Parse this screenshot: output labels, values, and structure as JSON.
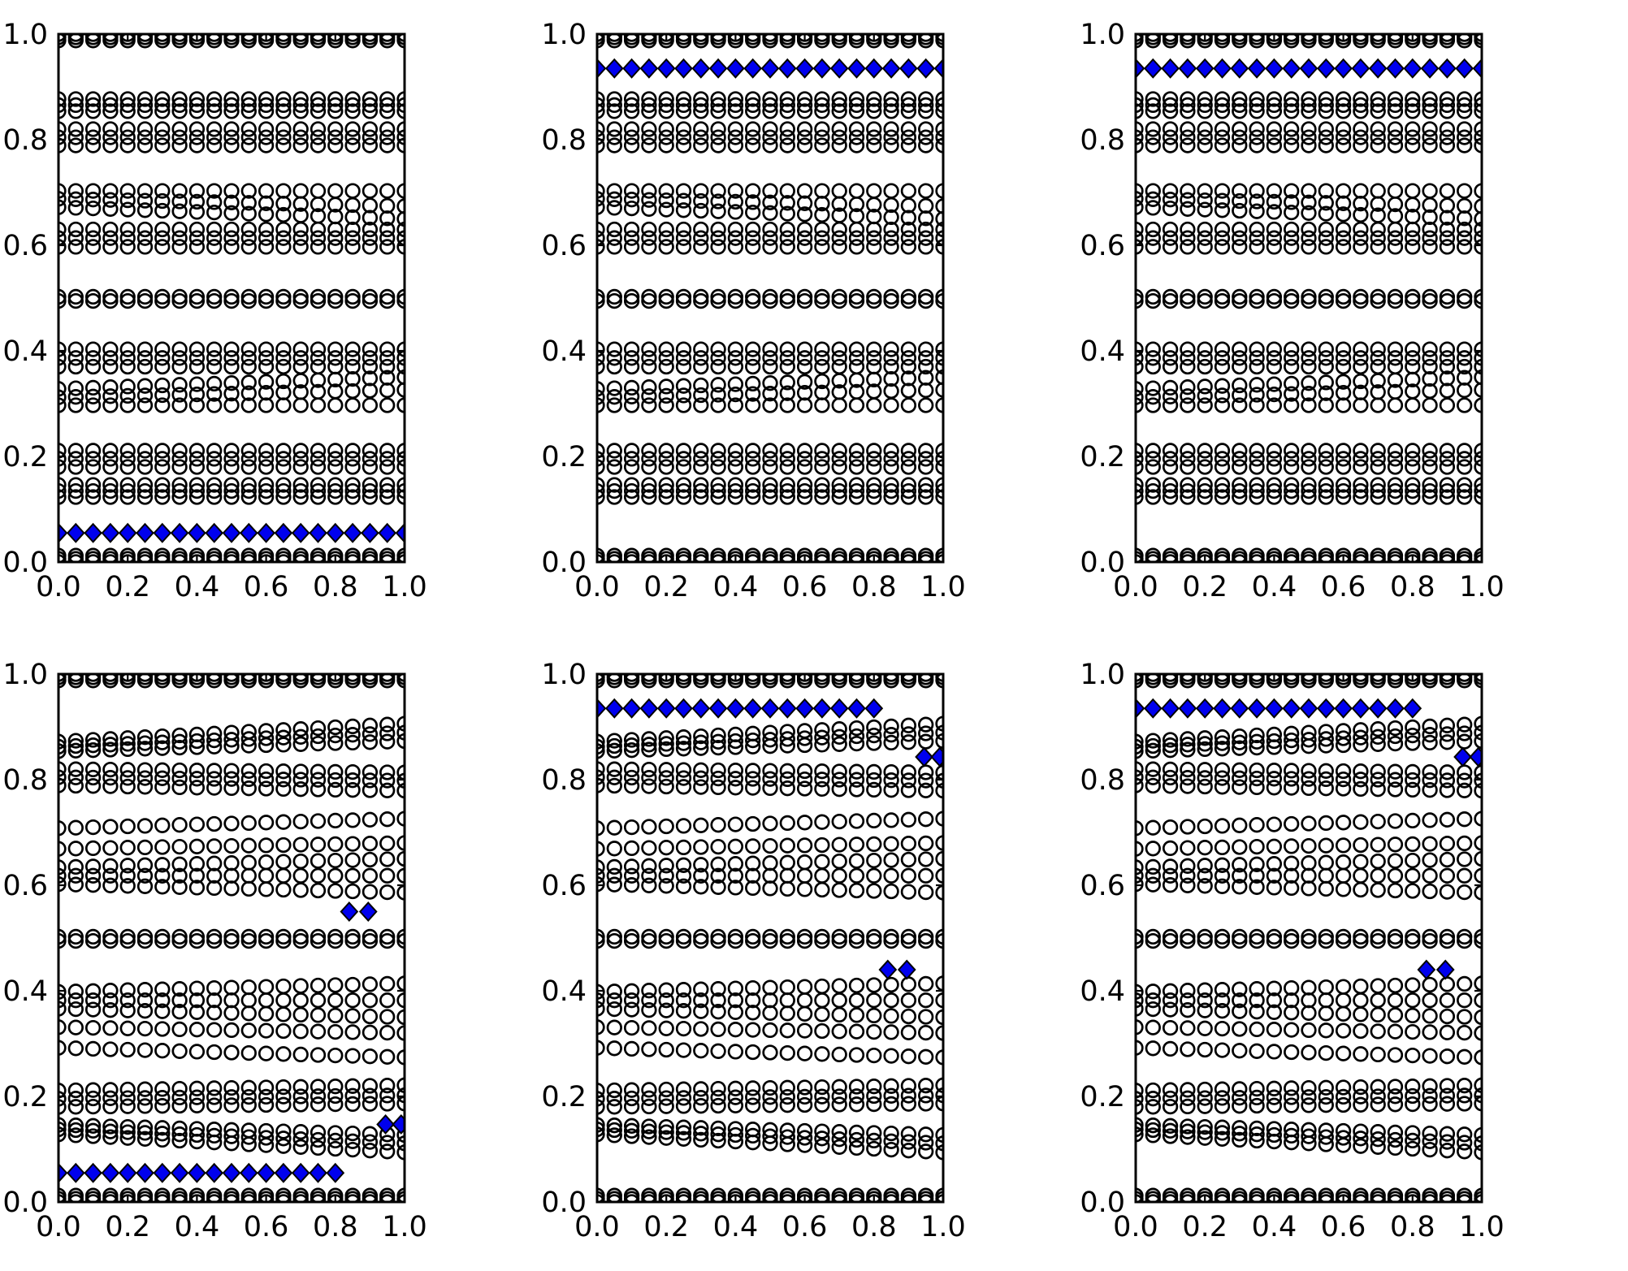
{
  "figure": {
    "background": "#ffffff",
    "description": "2x3 grid of spectrum scatter plots: black open-circle eigenvalue bands vs parameter, blue diamond edge-state branches"
  },
  "chart_data": {
    "type": "scatter",
    "layout": {
      "rows": 2,
      "cols": 3
    },
    "grid": false,
    "legend": null,
    "axes": {
      "xlim": [
        0,
        1
      ],
      "ylim": [
        0,
        1
      ],
      "tick_values": [
        0.0,
        0.2,
        0.4,
        0.6,
        0.8,
        1.0
      ],
      "xtick_labels": [
        "0.0",
        "0.2",
        "0.4",
        "0.6",
        "0.8",
        "1.0"
      ],
      "ytick_labels": [
        "0.0",
        "0.2",
        "0.4",
        "0.6",
        "0.8",
        "1.0"
      ],
      "xlabel": "",
      "ylabel": "",
      "title": ""
    },
    "x_grid": {
      "start": 0,
      "step": 0.05,
      "end": 1
    },
    "style": {
      "circle_edge": "#000000",
      "circle_radius_px": 8.3,
      "circle_stroke_px": 2.7,
      "diamond_fill": "#0000ee",
      "diamond_edge": "#000000",
      "frame": "#000000"
    },
    "subplots": [
      {
        "name": "top-left",
        "circle_rows": [
          [
            1.0,
            1.0
          ],
          [
            0.994,
            0.994
          ],
          [
            0.988,
            0.988
          ],
          [
            0.877,
            0.877
          ],
          [
            0.8655,
            0.8655
          ],
          [
            0.854,
            0.854
          ],
          [
            0.82,
            0.82
          ],
          [
            0.8045,
            0.8045
          ],
          [
            0.789,
            0.789
          ],
          [
            0.703,
            0.703
          ],
          [
            0.688,
            0.674
          ],
          [
            0.672,
            0.65
          ],
          [
            0.63,
            0.63
          ],
          [
            0.6135,
            0.6135
          ],
          [
            0.597,
            0.597
          ],
          [
            0.5025,
            0.5025
          ],
          [
            0.4945,
            0.4945
          ],
          [
            0.403,
            0.403
          ],
          [
            0.3865,
            0.3865
          ],
          [
            0.37,
            0.37
          ],
          [
            0.328,
            0.35
          ],
          [
            0.312,
            0.326
          ],
          [
            0.297,
            0.297
          ],
          [
            0.211,
            0.211
          ],
          [
            0.1955,
            0.1955
          ],
          [
            0.18,
            0.18
          ],
          [
            0.146,
            0.146
          ],
          [
            0.1345,
            0.1345
          ],
          [
            0.123,
            0.123
          ],
          [
            0.012,
            0.012
          ],
          [
            0.006,
            0.006
          ],
          [
            0.0,
            0.0
          ]
        ],
        "diamond_rows": [
          {
            "y": 0.055,
            "x_start": 0.0,
            "x_end": 1.0
          }
        ],
        "diamond_points": []
      },
      {
        "name": "top-middle",
        "circle_rows": [
          [
            1.0,
            1.0
          ],
          [
            0.994,
            0.994
          ],
          [
            0.988,
            0.988
          ],
          [
            0.877,
            0.877
          ],
          [
            0.8655,
            0.8655
          ],
          [
            0.854,
            0.854
          ],
          [
            0.82,
            0.82
          ],
          [
            0.8045,
            0.8045
          ],
          [
            0.789,
            0.789
          ],
          [
            0.703,
            0.703
          ],
          [
            0.688,
            0.674
          ],
          [
            0.672,
            0.65
          ],
          [
            0.63,
            0.63
          ],
          [
            0.6135,
            0.6135
          ],
          [
            0.597,
            0.597
          ],
          [
            0.5025,
            0.5025
          ],
          [
            0.4945,
            0.4945
          ],
          [
            0.403,
            0.403
          ],
          [
            0.3865,
            0.3865
          ],
          [
            0.37,
            0.37
          ],
          [
            0.328,
            0.35
          ],
          [
            0.312,
            0.326
          ],
          [
            0.297,
            0.297
          ],
          [
            0.211,
            0.211
          ],
          [
            0.1955,
            0.1955
          ],
          [
            0.18,
            0.18
          ],
          [
            0.146,
            0.146
          ],
          [
            0.1345,
            0.1345
          ],
          [
            0.123,
            0.123
          ],
          [
            0.012,
            0.012
          ],
          [
            0.006,
            0.006
          ],
          [
            0.0,
            0.0
          ]
        ],
        "diamond_rows": [
          {
            "y": 0.935,
            "x_start": 0.0,
            "x_end": 1.0
          }
        ],
        "diamond_points": []
      },
      {
        "name": "top-right",
        "circle_rows": [
          [
            1.0,
            1.0
          ],
          [
            0.994,
            0.994
          ],
          [
            0.988,
            0.988
          ],
          [
            0.877,
            0.877
          ],
          [
            0.8655,
            0.8655
          ],
          [
            0.854,
            0.854
          ],
          [
            0.82,
            0.82
          ],
          [
            0.8045,
            0.8045
          ],
          [
            0.789,
            0.789
          ],
          [
            0.703,
            0.703
          ],
          [
            0.688,
            0.674
          ],
          [
            0.672,
            0.65
          ],
          [
            0.63,
            0.63
          ],
          [
            0.6135,
            0.6135
          ],
          [
            0.597,
            0.597
          ],
          [
            0.5025,
            0.5025
          ],
          [
            0.4945,
            0.4945
          ],
          [
            0.403,
            0.403
          ],
          [
            0.3865,
            0.3865
          ],
          [
            0.37,
            0.37
          ],
          [
            0.328,
            0.35
          ],
          [
            0.312,
            0.326
          ],
          [
            0.297,
            0.297
          ],
          [
            0.211,
            0.211
          ],
          [
            0.1955,
            0.1955
          ],
          [
            0.18,
            0.18
          ],
          [
            0.146,
            0.146
          ],
          [
            0.1345,
            0.1345
          ],
          [
            0.123,
            0.123
          ],
          [
            0.012,
            0.012
          ],
          [
            0.006,
            0.006
          ],
          [
            0.0,
            0.0
          ]
        ],
        "diamond_rows": [
          {
            "y": 0.935,
            "x_start": 0.0,
            "x_end": 1.0
          }
        ],
        "diamond_points": []
      },
      {
        "name": "bottom-left",
        "circle_rows": [
          [
            1.0,
            1.0
          ],
          [
            0.994,
            0.994
          ],
          [
            0.988,
            0.988
          ],
          [
            0.872,
            0.906
          ],
          [
            0.8625,
            0.889
          ],
          [
            0.854,
            0.873
          ],
          [
            0.82,
            0.8135
          ],
          [
            0.8045,
            0.798
          ],
          [
            0.789,
            0.779
          ],
          [
            0.708,
            0.726
          ],
          [
            0.669,
            0.68
          ],
          [
            0.634,
            0.65
          ],
          [
            0.618,
            0.618
          ],
          [
            0.602,
            0.586
          ],
          [
            0.5025,
            0.5025
          ],
          [
            0.4945,
            0.4945
          ],
          [
            0.398,
            0.414
          ],
          [
            0.382,
            0.382
          ],
          [
            0.366,
            0.35
          ],
          [
            0.331,
            0.32
          ],
          [
            0.292,
            0.274
          ],
          [
            0.211,
            0.221
          ],
          [
            0.1955,
            0.202
          ],
          [
            0.18,
            0.1865
          ],
          [
            0.146,
            0.127
          ],
          [
            0.1375,
            0.111
          ],
          [
            0.128,
            0.094
          ],
          [
            0.012,
            0.012
          ],
          [
            0.006,
            0.006
          ],
          [
            0.0,
            0.0
          ]
        ],
        "diamond_rows": [
          {
            "y": 0.055,
            "x_start": 0.0,
            "x_end": 0.8
          }
        ],
        "diamond_points": [
          [
            0.84,
            0.55
          ],
          [
            0.895,
            0.55
          ],
          [
            0.945,
            0.147
          ],
          [
            0.99,
            0.147
          ]
        ]
      },
      {
        "name": "bottom-middle",
        "circle_rows": [
          [
            1.0,
            1.0
          ],
          [
            0.994,
            0.994
          ],
          [
            0.988,
            0.988
          ],
          [
            0.872,
            0.906
          ],
          [
            0.8625,
            0.889
          ],
          [
            0.854,
            0.873
          ],
          [
            0.82,
            0.8135
          ],
          [
            0.8045,
            0.798
          ],
          [
            0.789,
            0.779
          ],
          [
            0.708,
            0.726
          ],
          [
            0.669,
            0.68
          ],
          [
            0.634,
            0.65
          ],
          [
            0.618,
            0.618
          ],
          [
            0.602,
            0.586
          ],
          [
            0.5025,
            0.5025
          ],
          [
            0.4945,
            0.4945
          ],
          [
            0.398,
            0.414
          ],
          [
            0.382,
            0.382
          ],
          [
            0.366,
            0.35
          ],
          [
            0.331,
            0.32
          ],
          [
            0.292,
            0.274
          ],
          [
            0.211,
            0.221
          ],
          [
            0.1955,
            0.202
          ],
          [
            0.18,
            0.1865
          ],
          [
            0.146,
            0.127
          ],
          [
            0.1375,
            0.111
          ],
          [
            0.128,
            0.094
          ],
          [
            0.012,
            0.012
          ],
          [
            0.006,
            0.006
          ],
          [
            0.0,
            0.0
          ]
        ],
        "diamond_rows": [
          {
            "y": 0.935,
            "x_start": 0.0,
            "x_end": 0.8
          }
        ],
        "diamond_points": [
          [
            0.945,
            0.843
          ],
          [
            0.99,
            0.843
          ],
          [
            0.84,
            0.44
          ],
          [
            0.895,
            0.44
          ]
        ]
      },
      {
        "name": "bottom-right",
        "circle_rows": [
          [
            1.0,
            1.0
          ],
          [
            0.994,
            0.994
          ],
          [
            0.988,
            0.988
          ],
          [
            0.872,
            0.906
          ],
          [
            0.8625,
            0.889
          ],
          [
            0.854,
            0.873
          ],
          [
            0.82,
            0.8135
          ],
          [
            0.8045,
            0.798
          ],
          [
            0.789,
            0.779
          ],
          [
            0.708,
            0.726
          ],
          [
            0.669,
            0.68
          ],
          [
            0.634,
            0.65
          ],
          [
            0.618,
            0.618
          ],
          [
            0.602,
            0.586
          ],
          [
            0.5025,
            0.5025
          ],
          [
            0.4945,
            0.4945
          ],
          [
            0.398,
            0.414
          ],
          [
            0.382,
            0.382
          ],
          [
            0.366,
            0.35
          ],
          [
            0.331,
            0.32
          ],
          [
            0.292,
            0.274
          ],
          [
            0.211,
            0.221
          ],
          [
            0.1955,
            0.202
          ],
          [
            0.18,
            0.1865
          ],
          [
            0.146,
            0.127
          ],
          [
            0.1375,
            0.111
          ],
          [
            0.128,
            0.094
          ],
          [
            0.012,
            0.012
          ],
          [
            0.006,
            0.006
          ],
          [
            0.0,
            0.0
          ]
        ],
        "diamond_rows": [
          {
            "y": 0.935,
            "x_start": 0.0,
            "x_end": 0.8
          }
        ],
        "diamond_points": [
          [
            0.945,
            0.843
          ],
          [
            0.99,
            0.843
          ],
          [
            0.84,
            0.44
          ],
          [
            0.895,
            0.44
          ]
        ]
      }
    ]
  }
}
